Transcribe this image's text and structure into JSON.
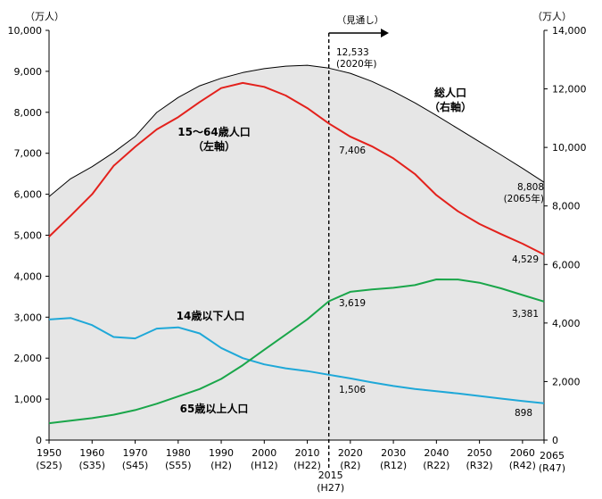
{
  "chart_data": {
    "type": "line",
    "title": "",
    "left_axis": {
      "unit": "（万人）",
      "range": [
        0,
        10000
      ],
      "ticks": [
        "0",
        "1,000",
        "2,000",
        "3,000",
        "4,000",
        "5,000",
        "6,000",
        "7,000",
        "8,000",
        "9,000",
        "10,000"
      ]
    },
    "right_axis": {
      "unit": "（万人）",
      "range": [
        0,
        14000
      ],
      "ticks": [
        "0",
        "2,000",
        "4,000",
        "6,000",
        "8,000",
        "10,000",
        "12,000",
        "14,000"
      ]
    },
    "x_ticks": [
      {
        "year": 1950,
        "label": "1950",
        "era": "(S25)"
      },
      {
        "year": 1960,
        "label": "1960",
        "era": "(S35)"
      },
      {
        "year": 1970,
        "label": "1970",
        "era": "(S45)"
      },
      {
        "year": 1980,
        "label": "1980",
        "era": "(S55)"
      },
      {
        "year": 1990,
        "label": "1990",
        "era": "(H2)"
      },
      {
        "year": 2000,
        "label": "2000",
        "era": "(H12)"
      },
      {
        "year": 2010,
        "label": "2010",
        "era": "(H22)"
      },
      {
        "year": 2020,
        "label": "2020",
        "era": "(R2)"
      },
      {
        "year": 2030,
        "label": "2030",
        "era": "(R12)"
      },
      {
        "year": 2040,
        "label": "2040",
        "era": "(R22)"
      },
      {
        "year": 2050,
        "label": "2050",
        "era": "(R32)"
      },
      {
        "year": 2060,
        "label": "2060",
        "era": "(R42)"
      },
      {
        "year": 2065,
        "label": "2065",
        "era": "(R47)"
      }
    ],
    "forecast": {
      "year": 2015,
      "label": "2015",
      "era": "(H27)",
      "arrow_label": "（見通し）"
    },
    "series": [
      {
        "name": "総人口\n（右軸）",
        "axis": "right",
        "color": "#000000",
        "fill": "#e6e6e6",
        "x": [
          1950,
          1955,
          1960,
          1965,
          1970,
          1975,
          1980,
          1985,
          1990,
          1995,
          2000,
          2005,
          2010,
          2015,
          2020,
          2025,
          2030,
          2035,
          2040,
          2045,
          2050,
          2055,
          2060,
          2065
        ],
        "values": [
          8320,
          8928,
          9342,
          9828,
          10372,
          11194,
          11706,
          12105,
          12361,
          12557,
          12693,
          12777,
          12806,
          12709,
          12533,
          12254,
          11913,
          11522,
          11092,
          10642,
          10192,
          9744,
          9284,
          8808
        ]
      },
      {
        "name": "15～64歳人口\n（左軸）",
        "axis": "left",
        "color": "#e3211c",
        "x": [
          1950,
          1955,
          1960,
          1965,
          1970,
          1975,
          1980,
          1985,
          1990,
          1995,
          2000,
          2005,
          2010,
          2015,
          2020,
          2025,
          2030,
          2035,
          2040,
          2045,
          2050,
          2055,
          2060,
          2065
        ],
        "values": [
          4966,
          5473,
          6000,
          6693,
          7157,
          7581,
          7883,
          8251,
          8590,
          8716,
          8622,
          8409,
          8103,
          7728,
          7406,
          7170,
          6875,
          6494,
          5978,
          5584,
          5275,
          5028,
          4793,
          4529
        ]
      },
      {
        "name": "65歳以上人口",
        "axis": "left",
        "color": "#1aa64a",
        "x": [
          1950,
          1955,
          1960,
          1965,
          1970,
          1975,
          1980,
          1985,
          1990,
          1995,
          2000,
          2005,
          2010,
          2015,
          2020,
          2025,
          2030,
          2035,
          2040,
          2045,
          2050,
          2055,
          2060,
          2065
        ],
        "values": [
          411,
          475,
          535,
          618,
          733,
          887,
          1065,
          1247,
          1493,
          1828,
          2204,
          2576,
          2948,
          3387,
          3619,
          3677,
          3716,
          3782,
          3921,
          3919,
          3841,
          3704,
          3540,
          3381
        ]
      },
      {
        "name": "14歳以下人口",
        "axis": "left",
        "color": "#1fa8d8",
        "x": [
          1950,
          1955,
          1960,
          1965,
          1970,
          1975,
          1980,
          1985,
          1990,
          1995,
          2000,
          2005,
          2010,
          2015,
          2020,
          2025,
          2030,
          2035,
          2040,
          2045,
          2050,
          2055,
          2060,
          2065
        ],
        "values": [
          2943,
          2980,
          2807,
          2517,
          2482,
          2722,
          2751,
          2603,
          2249,
          2001,
          1847,
          1752,
          1684,
          1595,
          1506,
          1407,
          1321,
          1246,
          1194,
          1138,
          1077,
          1012,
          951,
          898
        ]
      }
    ],
    "annotations": [
      {
        "series": "総人口",
        "text": "12,533",
        "sub": "(2020年)"
      },
      {
        "series": "総人口",
        "text": "8,808",
        "sub": "(2065年)"
      },
      {
        "series": "15～64歳人口",
        "text": "7,406"
      },
      {
        "series": "15～64歳人口",
        "text": "4,529"
      },
      {
        "series": "65歳以上人口",
        "text": "3,619"
      },
      {
        "series": "65歳以上人口",
        "text": "3,381"
      },
      {
        "series": "14歳以下人口",
        "text": "1,506"
      },
      {
        "series": "14歳以下人口",
        "text": "898"
      }
    ]
  }
}
